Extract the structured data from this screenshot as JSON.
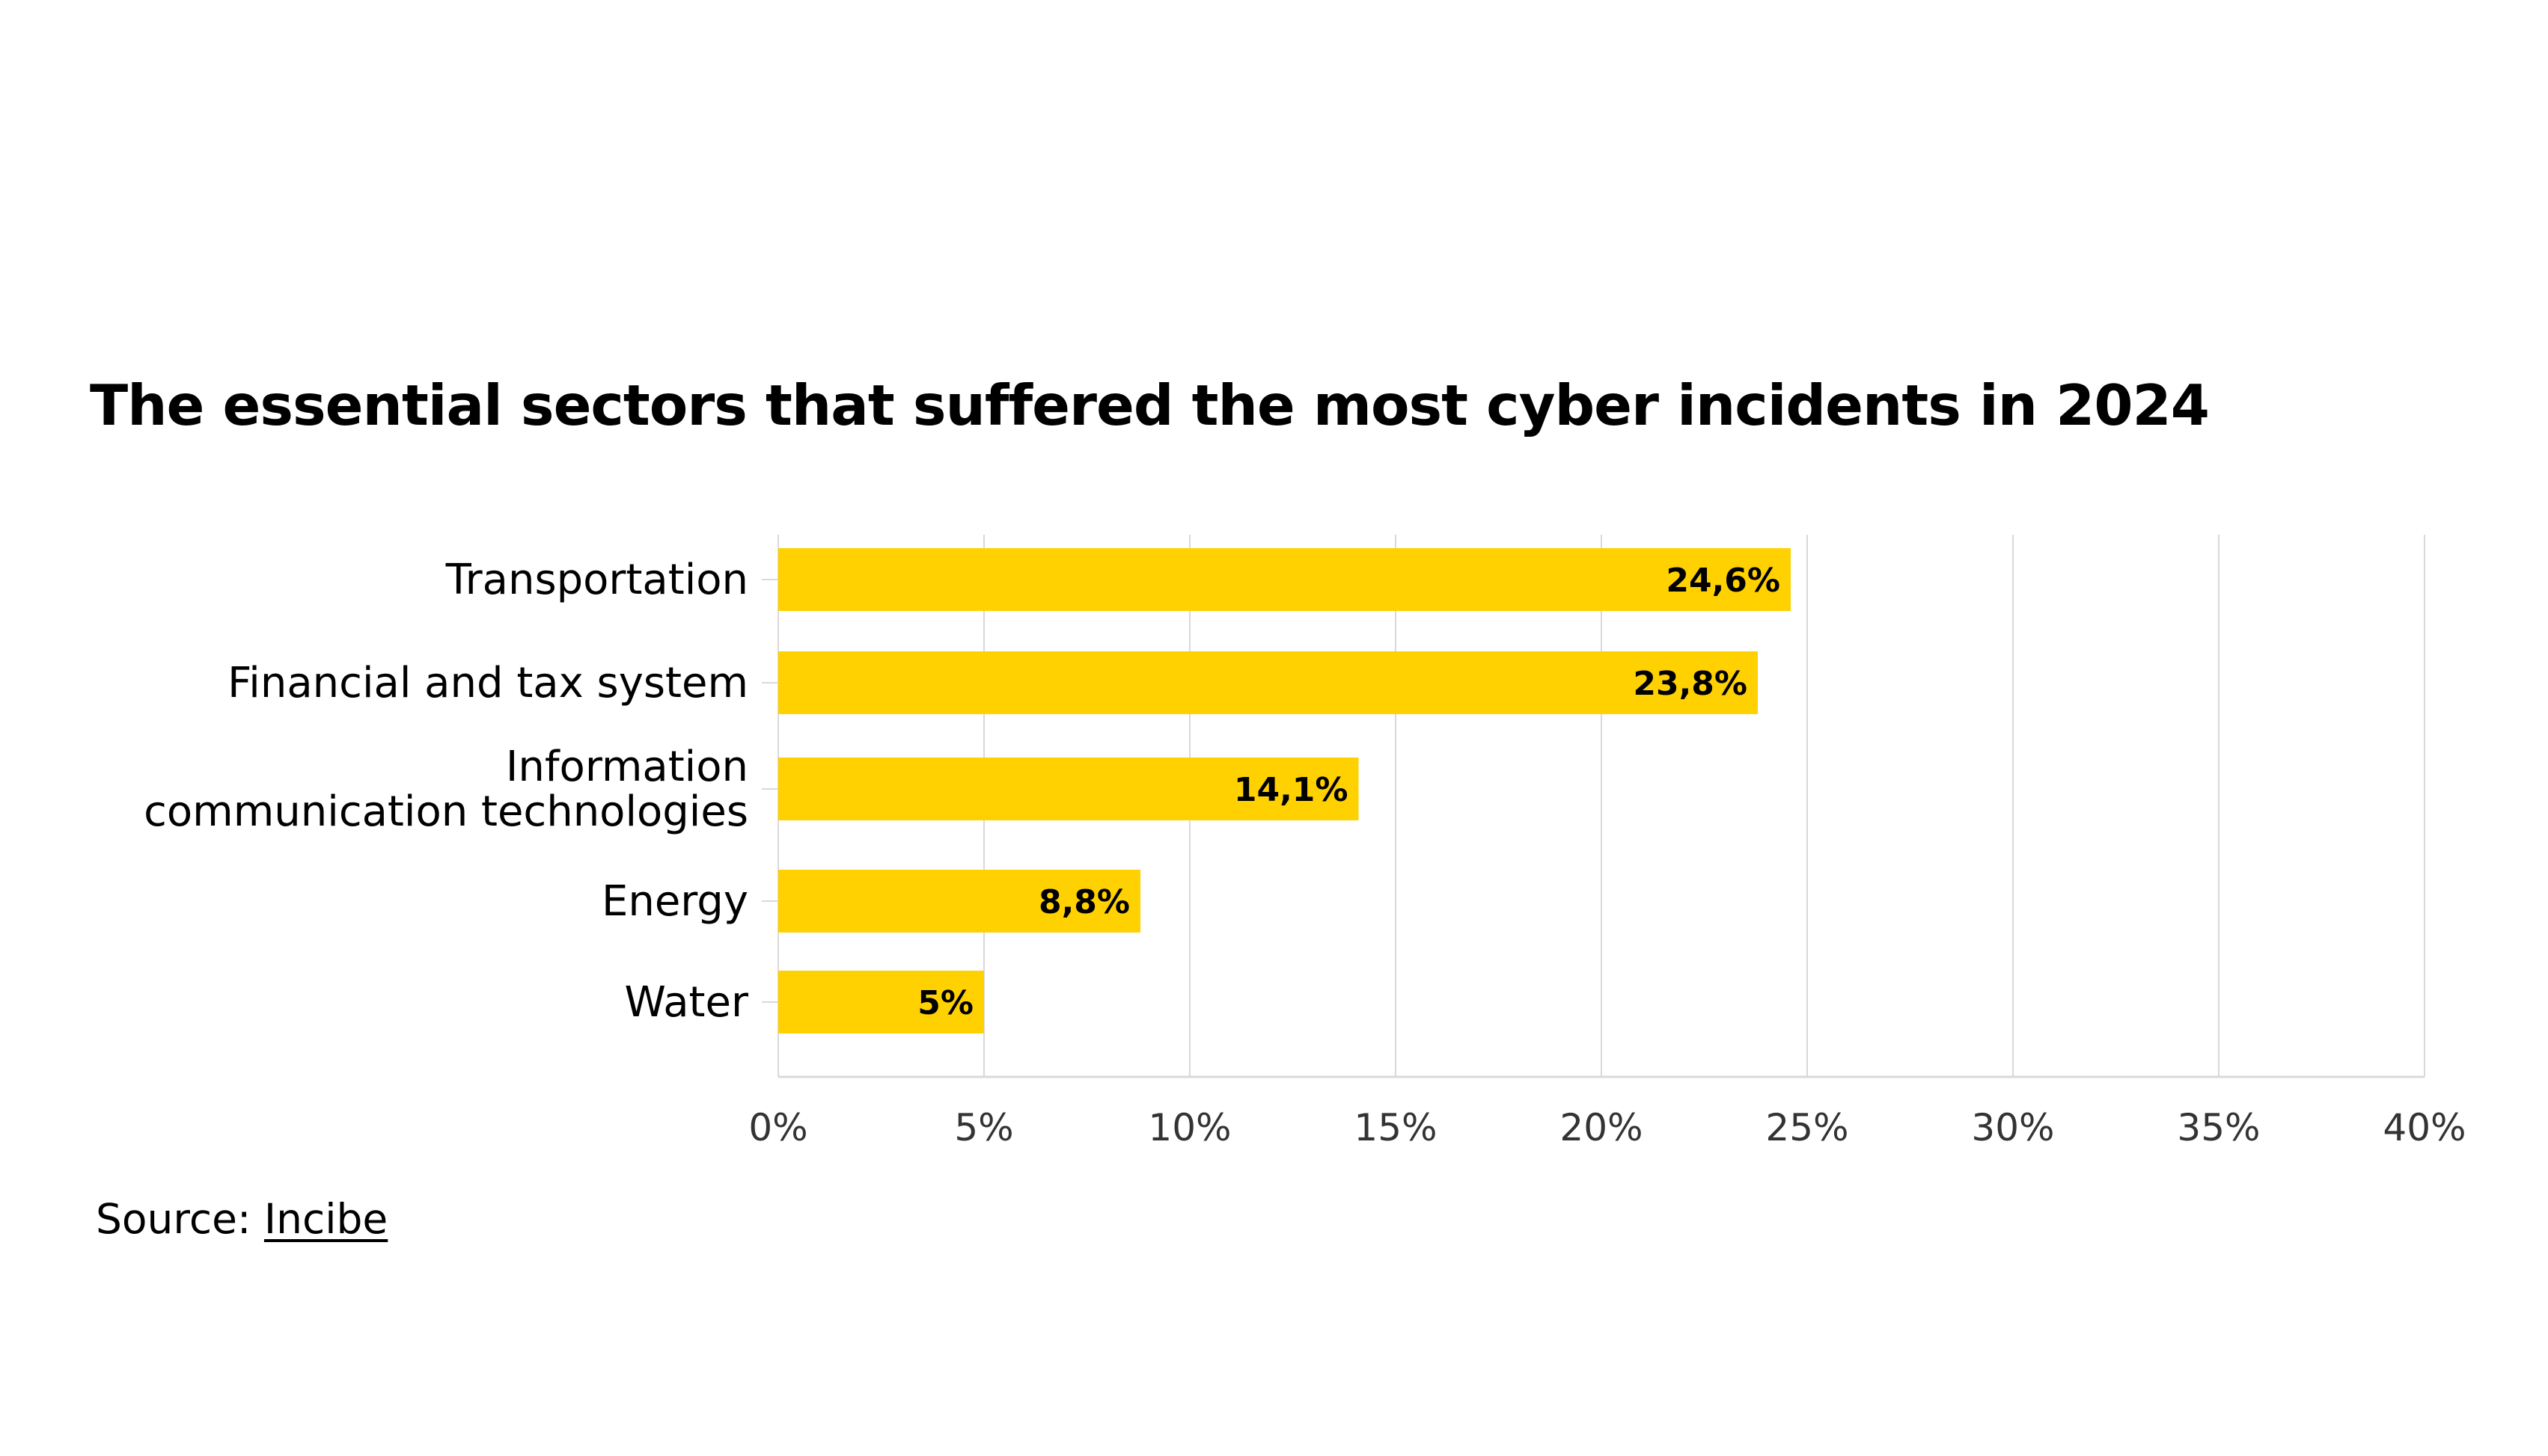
{
  "chart_data": {
    "type": "bar",
    "orientation": "horizontal",
    "title": "The essential sectors that suffered the most cyber incidents in 2024",
    "categories": [
      [
        "Transportation"
      ],
      [
        "Financial and tax system"
      ],
      [
        "Information",
        "communication technologies"
      ],
      [
        "Energy"
      ],
      [
        "Water"
      ]
    ],
    "values": [
      24.6,
      23.8,
      14.1,
      8.8,
      5
    ],
    "data_labels": [
      "24,6%",
      "23,8%",
      "14,1%",
      "8,8%",
      "5%"
    ],
    "xlim": [
      0,
      40
    ],
    "x_ticks": [
      0,
      5,
      10,
      15,
      20,
      25,
      30,
      35,
      40
    ],
    "x_tick_labels": [
      "0%",
      "5%",
      "10%",
      "15%",
      "20%",
      "25%",
      "30%",
      "35%",
      "40%"
    ],
    "xlabel": "",
    "ylabel": "",
    "grid": "vertical",
    "legend": "none",
    "bar_color": "#FFD100",
    "gridline_color": "#D9D9D9",
    "text_color": "#000000"
  },
  "source": {
    "label": "Source:",
    "link_text": "Incibe"
  }
}
